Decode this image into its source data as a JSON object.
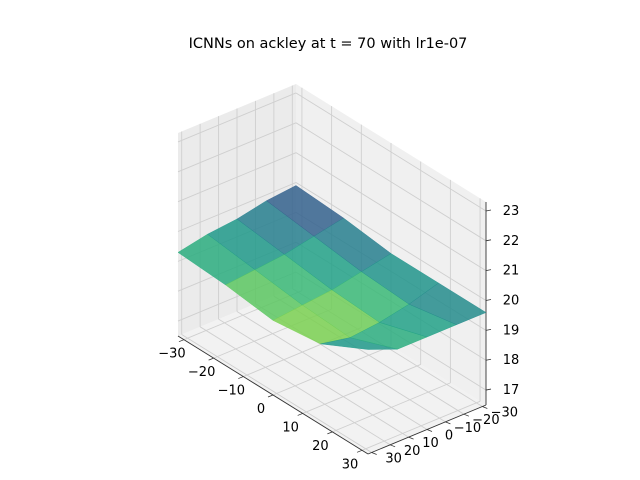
{
  "chart_data": {
    "type": "surface3d",
    "title": "ICNNs on ackley at t = 70 with lr1e-07",
    "colormap": "viridis",
    "grid": true,
    "x": {
      "label": "",
      "range": [
        -32,
        32
      ],
      "ticks": [
        -30,
        -20,
        -10,
        0,
        10,
        20,
        30
      ],
      "tick_labels": [
        "−30",
        "−20",
        "−10",
        "0",
        "10",
        "20",
        "30"
      ]
    },
    "y": {
      "label": "",
      "range": [
        -32,
        32
      ],
      "ticks": [
        -30,
        -20,
        -10,
        0,
        10,
        20,
        30
      ],
      "tick_labels": [
        "−30",
        "−20",
        "−10",
        "0",
        "10",
        "20",
        "30"
      ]
    },
    "z": {
      "label": "",
      "range": [
        16.5,
        23.3
      ],
      "ticks": [
        17,
        18,
        19,
        20,
        21,
        22,
        23
      ],
      "tick_labels": [
        "17",
        "18",
        "19",
        "20",
        "21",
        "22",
        "23"
      ]
    },
    "surface": {
      "x": [
        -32,
        -16,
        0,
        16,
        32
      ],
      "y": [
        -32,
        -16,
        0,
        16,
        32
      ],
      "z": [
        [
          19.9,
          19.8,
          19.6,
          19.5,
          19.3
        ],
        [
          19.8,
          19.6,
          19.4,
          19.3,
          19.2
        ],
        [
          19.6,
          19.4,
          19.2,
          19.1,
          19.0
        ],
        [
          19.6,
          19.3,
          19.1,
          19.0,
          19.2
        ],
        [
          19.6,
          19.6,
          19.6,
          19.6,
          20.0
        ]
      ]
    }
  }
}
